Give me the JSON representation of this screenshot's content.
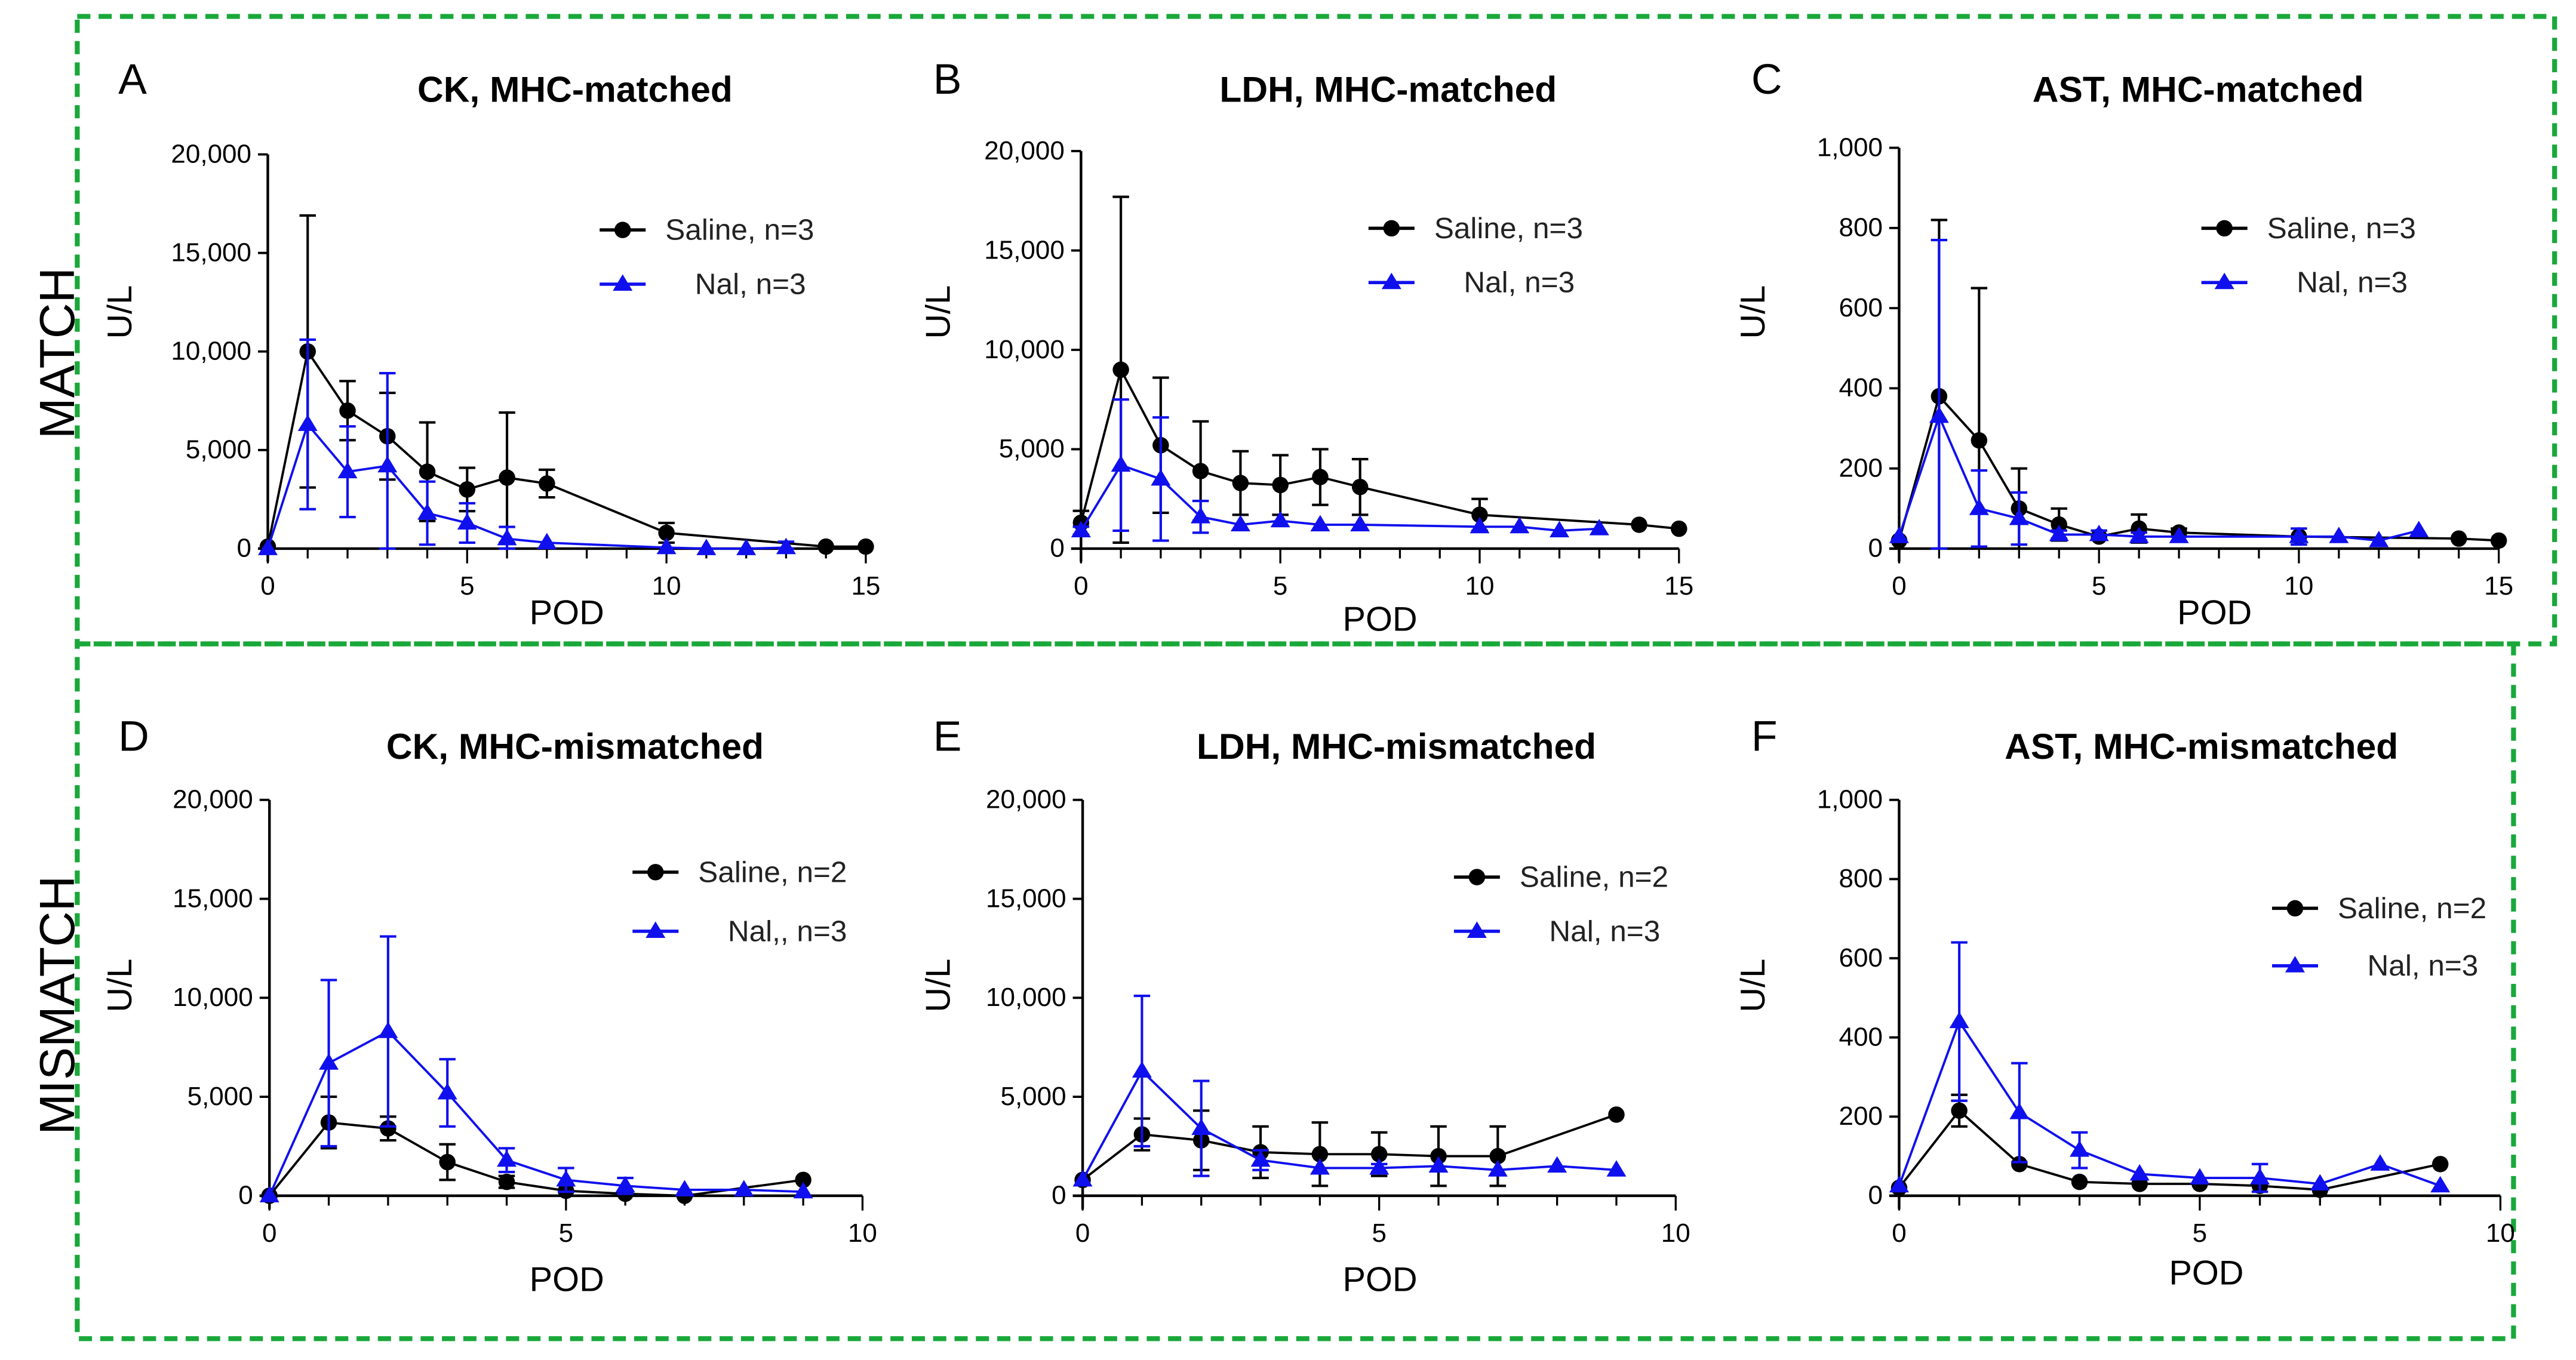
{
  "row_labels": [
    "MATCH",
    "MISMATCH"
  ],
  "colors": {
    "saline": "#000000",
    "nal": "#1010ee",
    "frame": "#19a83a"
  },
  "chart_data": [
    {
      "type": "line",
      "letter": "A",
      "title": "CK, MHC-matched",
      "xlabel": "POD",
      "ylabel": "U/L",
      "xlim": [
        0,
        15
      ],
      "ylim": [
        0,
        20000
      ],
      "xticks": [
        0,
        5,
        10,
        15
      ],
      "xtick_labels": [
        "0",
        "5",
        "10",
        "15"
      ],
      "yticks": [
        0,
        5000,
        10000,
        15000,
        20000
      ],
      "ytick_labels": [
        "0",
        "5,000",
        "10,000",
        "15,000",
        "20,000"
      ],
      "legend": "top-right",
      "grid": false,
      "series": [
        {
          "name": "Saline, n=3",
          "marker": "circle",
          "x": [
            0,
            1,
            2,
            3,
            4,
            5,
            6,
            7,
            10,
            14,
            15
          ],
          "y": [
            100,
            10000,
            7000,
            5700,
            3900,
            3000,
            3600,
            3300,
            800,
            100,
            100
          ],
          "err": [
            0,
            6900,
            1500,
            2200,
            2500,
            1100,
            3300,
            700,
            500,
            0,
            0
          ]
        },
        {
          "name": "Nal, n=3",
          "marker": "triangle",
          "x": [
            0,
            1,
            2,
            3,
            4,
            5,
            6,
            7,
            10,
            11,
            12,
            13
          ],
          "y": [
            0,
            6300,
            3900,
            4200,
            1800,
            1300,
            500,
            300,
            50,
            0,
            0,
            50
          ],
          "err": [
            0,
            4300,
            2300,
            4700,
            1600,
            1000,
            600,
            0,
            0,
            0,
            0,
            300
          ]
        }
      ]
    },
    {
      "type": "line",
      "letter": "B",
      "title": "LDH, MHC-matched",
      "xlabel": "POD",
      "ylabel": "U/L",
      "xlim": [
        0,
        15
      ],
      "ylim": [
        0,
        20000
      ],
      "xticks": [
        0,
        5,
        10,
        15
      ],
      "xtick_labels": [
        "0",
        "5",
        "10",
        "15"
      ],
      "yticks": [
        0,
        5000,
        10000,
        15000,
        20000
      ],
      "ytick_labels": [
        "0",
        "5,000",
        "10,000",
        "15,000",
        "20,000"
      ],
      "legend": "top-right",
      "grid": false,
      "series": [
        {
          "name": "Saline, n=3",
          "marker": "circle",
          "x": [
            0,
            1,
            2,
            3,
            4,
            5,
            6,
            7,
            10,
            14,
            15
          ],
          "y": [
            1300,
            9000,
            5200,
            3900,
            3300,
            3200,
            3600,
            3100,
            1700,
            1200,
            1000
          ],
          "err": [
            600,
            8700,
            3400,
            2500,
            1600,
            1500,
            1400,
            1400,
            800,
            0,
            0
          ]
        },
        {
          "name": "Nal, n=3",
          "marker": "triangle",
          "x": [
            0,
            1,
            2,
            3,
            4,
            5,
            6,
            7,
            10,
            11,
            12,
            13
          ],
          "y": [
            900,
            4200,
            3500,
            1600,
            1200,
            1400,
            1200,
            1200,
            1100,
            1100,
            900,
            1000
          ],
          "err": [
            200,
            3300,
            3100,
            800,
            0,
            0,
            0,
            0,
            0,
            0,
            0,
            0
          ]
        }
      ]
    },
    {
      "type": "line",
      "letter": "C",
      "title": "AST, MHC-matched",
      "xlabel": "POD",
      "ylabel": "U/L",
      "xlim": [
        0,
        15
      ],
      "ylim": [
        0,
        1000
      ],
      "xticks": [
        0,
        5,
        10,
        15
      ],
      "xtick_labels": [
        "0",
        "5",
        "10",
        "15"
      ],
      "yticks": [
        0,
        200,
        400,
        600,
        800,
        1000
      ],
      "ytick_labels": [
        "0",
        "200",
        "400",
        "600",
        "800",
        "1,000"
      ],
      "legend": "top-right",
      "grid": false,
      "series": [
        {
          "name": "Saline, n=3",
          "marker": "circle",
          "x": [
            0,
            1,
            2,
            3,
            4,
            5,
            6,
            7,
            10,
            14,
            15
          ],
          "y": [
            20,
            380,
            270,
            100,
            60,
            30,
            50,
            40,
            30,
            25,
            20
          ],
          "err": [
            0,
            440,
            380,
            100,
            40,
            0,
            35,
            10,
            0,
            0,
            0
          ]
        },
        {
          "name": "Nal, n=3",
          "marker": "triangle",
          "x": [
            0,
            1,
            2,
            3,
            4,
            5,
            6,
            7,
            10,
            11,
            12,
            13
          ],
          "y": [
            30,
            330,
            100,
            75,
            35,
            35,
            30,
            30,
            30,
            30,
            20,
            45
          ],
          "err": [
            0,
            440,
            95,
            65,
            10,
            10,
            10,
            0,
            20,
            0,
            0,
            0
          ]
        }
      ]
    },
    {
      "type": "line",
      "letter": "D",
      "title": "CK, MHC-mismatched",
      "xlabel": "POD",
      "ylabel": "U/L",
      "xlim": [
        0,
        10
      ],
      "ylim": [
        0,
        20000
      ],
      "xticks": [
        0,
        5,
        10
      ],
      "xtick_labels": [
        "0",
        "5",
        "10"
      ],
      "yticks": [
        0,
        5000,
        10000,
        15000,
        20000
      ],
      "ytick_labels": [
        "0",
        "5,000",
        "10,000",
        "15,000",
        "20,000"
      ],
      "legend": "top-right",
      "grid": false,
      "series": [
        {
          "name": "Saline, n=2",
          "marker": "circle",
          "x": [
            0,
            1,
            2,
            3,
            4,
            5,
            6,
            7,
            9
          ],
          "y": [
            0,
            3700,
            3400,
            1700,
            700,
            250,
            100,
            0,
            800
          ],
          "err": [
            0,
            1300,
            600,
            900,
            300,
            0,
            0,
            0,
            0
          ]
        },
        {
          "name": "Nal,, n=3",
          "marker": "triangle",
          "x": [
            0,
            1,
            2,
            3,
            4,
            5,
            6,
            7,
            8,
            9
          ],
          "y": [
            0,
            6700,
            8300,
            5200,
            1800,
            800,
            500,
            300,
            300,
            200
          ],
          "err": [
            0,
            4200,
            4800,
            1700,
            600,
            600,
            400,
            0,
            0,
            0
          ]
        }
      ]
    },
    {
      "type": "line",
      "letter": "E",
      "title": "LDH, MHC-mismatched",
      "xlabel": "POD",
      "ylabel": "U/L",
      "xlim": [
        0,
        10
      ],
      "ylim": [
        0,
        20000
      ],
      "xticks": [
        0,
        5,
        10
      ],
      "xtick_labels": [
        "0",
        "5",
        "10"
      ],
      "yticks": [
        0,
        5000,
        10000,
        15000,
        20000
      ],
      "ytick_labels": [
        "0",
        "5,000",
        "10,000",
        "15,000",
        "20,000"
      ],
      "legend": "top-right",
      "grid": false,
      "series": [
        {
          "name": "Saline, n=2",
          "marker": "circle",
          "x": [
            0,
            1,
            2,
            3,
            4,
            5,
            6,
            7,
            9
          ],
          "y": [
            800,
            3100,
            2800,
            2200,
            2100,
            2100,
            2000,
            2000,
            4100
          ],
          "err": [
            0,
            800,
            1500,
            1300,
            1600,
            1100,
            1500,
            1500,
            0
          ]
        },
        {
          "name": "Nal, n=3",
          "marker": "triangle",
          "x": [
            0,
            1,
            2,
            3,
            4,
            5,
            6,
            7,
            8,
            9
          ],
          "y": [
            800,
            6300,
            3400,
            1800,
            1400,
            1400,
            1500,
            1300,
            1500,
            1300
          ],
          "err": [
            0,
            3800,
            2400,
            500,
            0,
            200,
            0,
            0,
            0,
            0
          ]
        }
      ]
    },
    {
      "type": "line",
      "letter": "F",
      "title": "AST, MHC-mismatched",
      "xlabel": "POD",
      "ylabel": "U/L",
      "xlim": [
        0,
        10
      ],
      "ylim": [
        0,
        1000
      ],
      "xticks": [
        0,
        5,
        10
      ],
      "xtick_labels": [
        "0",
        "5",
        "10"
      ],
      "yticks": [
        0,
        200,
        400,
        600,
        800,
        1000
      ],
      "ytick_labels": [
        "0",
        "200",
        "400",
        "600",
        "800",
        "1,000"
      ],
      "legend": "right",
      "grid": false,
      "series": [
        {
          "name": "Saline, n=2",
          "marker": "circle",
          "x": [
            0,
            1,
            2,
            3,
            4,
            5,
            6,
            7,
            9
          ],
          "y": [
            20,
            215,
            80,
            35,
            30,
            30,
            25,
            15,
            80
          ],
          "err": [
            0,
            40,
            0,
            0,
            0,
            0,
            0,
            0,
            0
          ]
        },
        {
          "name": "Nal, n=3",
          "marker": "triangle",
          "x": [
            0,
            1,
            2,
            3,
            4,
            5,
            6,
            7,
            8,
            9
          ],
          "y": [
            25,
            440,
            210,
            115,
            55,
            45,
            45,
            30,
            80,
            25
          ],
          "err": [
            0,
            200,
            125,
            45,
            0,
            0,
            35,
            0,
            0,
            0
          ]
        }
      ]
    }
  ]
}
